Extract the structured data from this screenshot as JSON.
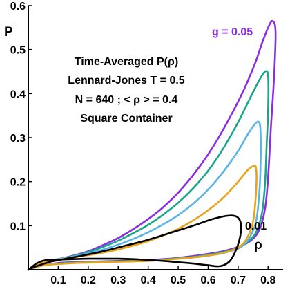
{
  "chart_data": {
    "type": "line",
    "xlabel": "ρ",
    "ylabel": "P",
    "xlim": [
      0,
      0.85
    ],
    "ylim": [
      0,
      0.6
    ],
    "x_ticks": [
      "0.1",
      "0.2",
      "0.3",
      "0.4",
      "0.5",
      "0.6",
      "0.7",
      "0.8"
    ],
    "y_ticks": [
      "0.1",
      "0.2",
      "0.3",
      "0.4",
      "0.5",
      "0.6"
    ],
    "grid": false,
    "legend": "none",
    "annotations": [
      "Time-Averaged P(ρ)",
      "Lennard-Jones T = 0.5",
      "N = 640 ; < ρ > = 0.4",
      "Square Container"
    ],
    "series": [
      {
        "name": "g = 0.05",
        "color": "#8b2be2",
        "x": [
          0.0,
          0.02,
          0.05,
          0.1,
          0.15,
          0.2,
          0.25,
          0.3,
          0.35,
          0.4,
          0.45,
          0.5,
          0.55,
          0.6,
          0.65,
          0.7,
          0.73,
          0.76,
          0.78,
          0.8,
          0.815,
          0.825,
          0.82,
          0.81,
          0.8,
          0.79,
          0.77,
          0.74,
          0.7,
          0.65,
          0.6,
          0.55,
          0.5,
          0.45,
          0.4,
          0.35,
          0.3,
          0.25,
          0.2,
          0.15,
          0.1,
          0.05,
          0.0
        ],
        "y": [
          0.0,
          0.008,
          0.018,
          0.024,
          0.032,
          0.042,
          0.056,
          0.072,
          0.092,
          0.115,
          0.142,
          0.175,
          0.215,
          0.262,
          0.318,
          0.382,
          0.425,
          0.475,
          0.515,
          0.55,
          0.565,
          0.54,
          0.44,
          0.33,
          0.21,
          0.14,
          0.09,
          0.065,
          0.052,
          0.042,
          0.036,
          0.031,
          0.027,
          0.024,
          0.022,
          0.021,
          0.02,
          0.019,
          0.018,
          0.017,
          0.015,
          0.01,
          0.0
        ]
      },
      {
        "name": "",
        "color": "#1aa58a",
        "x": [
          0.0,
          0.02,
          0.05,
          0.1,
          0.15,
          0.2,
          0.25,
          0.3,
          0.35,
          0.4,
          0.45,
          0.5,
          0.55,
          0.6,
          0.65,
          0.7,
          0.74,
          0.77,
          0.79,
          0.8,
          0.8,
          0.795,
          0.79,
          0.78,
          0.76,
          0.73,
          0.7,
          0.65,
          0.6,
          0.55,
          0.5,
          0.45,
          0.4,
          0.35,
          0.3,
          0.25,
          0.2,
          0.15,
          0.1,
          0.05,
          0.0
        ],
        "y": [
          0.0,
          0.008,
          0.018,
          0.024,
          0.031,
          0.04,
          0.052,
          0.066,
          0.083,
          0.102,
          0.125,
          0.152,
          0.185,
          0.225,
          0.275,
          0.335,
          0.39,
          0.43,
          0.45,
          0.44,
          0.36,
          0.28,
          0.2,
          0.13,
          0.085,
          0.062,
          0.05,
          0.04,
          0.034,
          0.029,
          0.026,
          0.023,
          0.021,
          0.02,
          0.019,
          0.018,
          0.017,
          0.016,
          0.014,
          0.01,
          0.0
        ]
      },
      {
        "name": "",
        "color": "#5ab4e6",
        "x": [
          0.0,
          0.02,
          0.05,
          0.1,
          0.15,
          0.2,
          0.25,
          0.3,
          0.35,
          0.4,
          0.45,
          0.5,
          0.55,
          0.6,
          0.65,
          0.7,
          0.73,
          0.755,
          0.77,
          0.775,
          0.775,
          0.77,
          0.76,
          0.74,
          0.72,
          0.7,
          0.65,
          0.6,
          0.55,
          0.5,
          0.45,
          0.4,
          0.35,
          0.3,
          0.25,
          0.2,
          0.15,
          0.1,
          0.05,
          0.0
        ],
        "y": [
          0.0,
          0.008,
          0.018,
          0.024,
          0.03,
          0.037,
          0.046,
          0.057,
          0.07,
          0.085,
          0.103,
          0.124,
          0.15,
          0.182,
          0.222,
          0.27,
          0.305,
          0.33,
          0.335,
          0.31,
          0.24,
          0.17,
          0.11,
          0.075,
          0.058,
          0.048,
          0.038,
          0.032,
          0.028,
          0.025,
          0.022,
          0.02,
          0.019,
          0.018,
          0.017,
          0.016,
          0.015,
          0.013,
          0.01,
          0.0
        ]
      },
      {
        "name": "",
        "color": "#e8a317",
        "x": [
          0.0,
          0.02,
          0.05,
          0.1,
          0.15,
          0.2,
          0.25,
          0.3,
          0.35,
          0.4,
          0.45,
          0.5,
          0.55,
          0.6,
          0.65,
          0.7,
          0.73,
          0.75,
          0.76,
          0.76,
          0.75,
          0.73,
          0.71,
          0.69,
          0.65,
          0.6,
          0.55,
          0.5,
          0.45,
          0.4,
          0.35,
          0.3,
          0.25,
          0.2,
          0.15,
          0.1,
          0.05,
          0.0
        ],
        "y": [
          0.0,
          0.008,
          0.017,
          0.023,
          0.028,
          0.033,
          0.039,
          0.046,
          0.055,
          0.065,
          0.078,
          0.093,
          0.112,
          0.135,
          0.163,
          0.2,
          0.225,
          0.235,
          0.23,
          0.18,
          0.11,
          0.072,
          0.055,
          0.047,
          0.038,
          0.032,
          0.028,
          0.025,
          0.022,
          0.02,
          0.019,
          0.018,
          0.017,
          0.016,
          0.015,
          0.013,
          0.01,
          0.0
        ]
      },
      {
        "name": "0.01",
        "color": "#000000",
        "x": [
          0.0,
          0.02,
          0.05,
          0.08,
          0.12,
          0.18,
          0.25,
          0.32,
          0.4,
          0.48,
          0.55,
          0.61,
          0.65,
          0.68,
          0.7,
          0.71,
          0.705,
          0.69,
          0.67,
          0.64,
          0.6,
          0.55,
          0.5,
          0.45,
          0.4,
          0.35,
          0.3,
          0.25,
          0.2,
          0.15,
          0.1,
          0.06,
          0.03,
          0.0
        ],
        "y": [
          0.0,
          0.006,
          0.013,
          0.019,
          0.024,
          0.032,
          0.042,
          0.054,
          0.068,
          0.085,
          0.1,
          0.114,
          0.121,
          0.123,
          0.118,
          0.1,
          0.07,
          0.04,
          0.018,
          0.008,
          0.01,
          0.014,
          0.017,
          0.02,
          0.022,
          0.024,
          0.025,
          0.025,
          0.025,
          0.024,
          0.023,
          0.022,
          0.015,
          0.0
        ]
      }
    ]
  }
}
